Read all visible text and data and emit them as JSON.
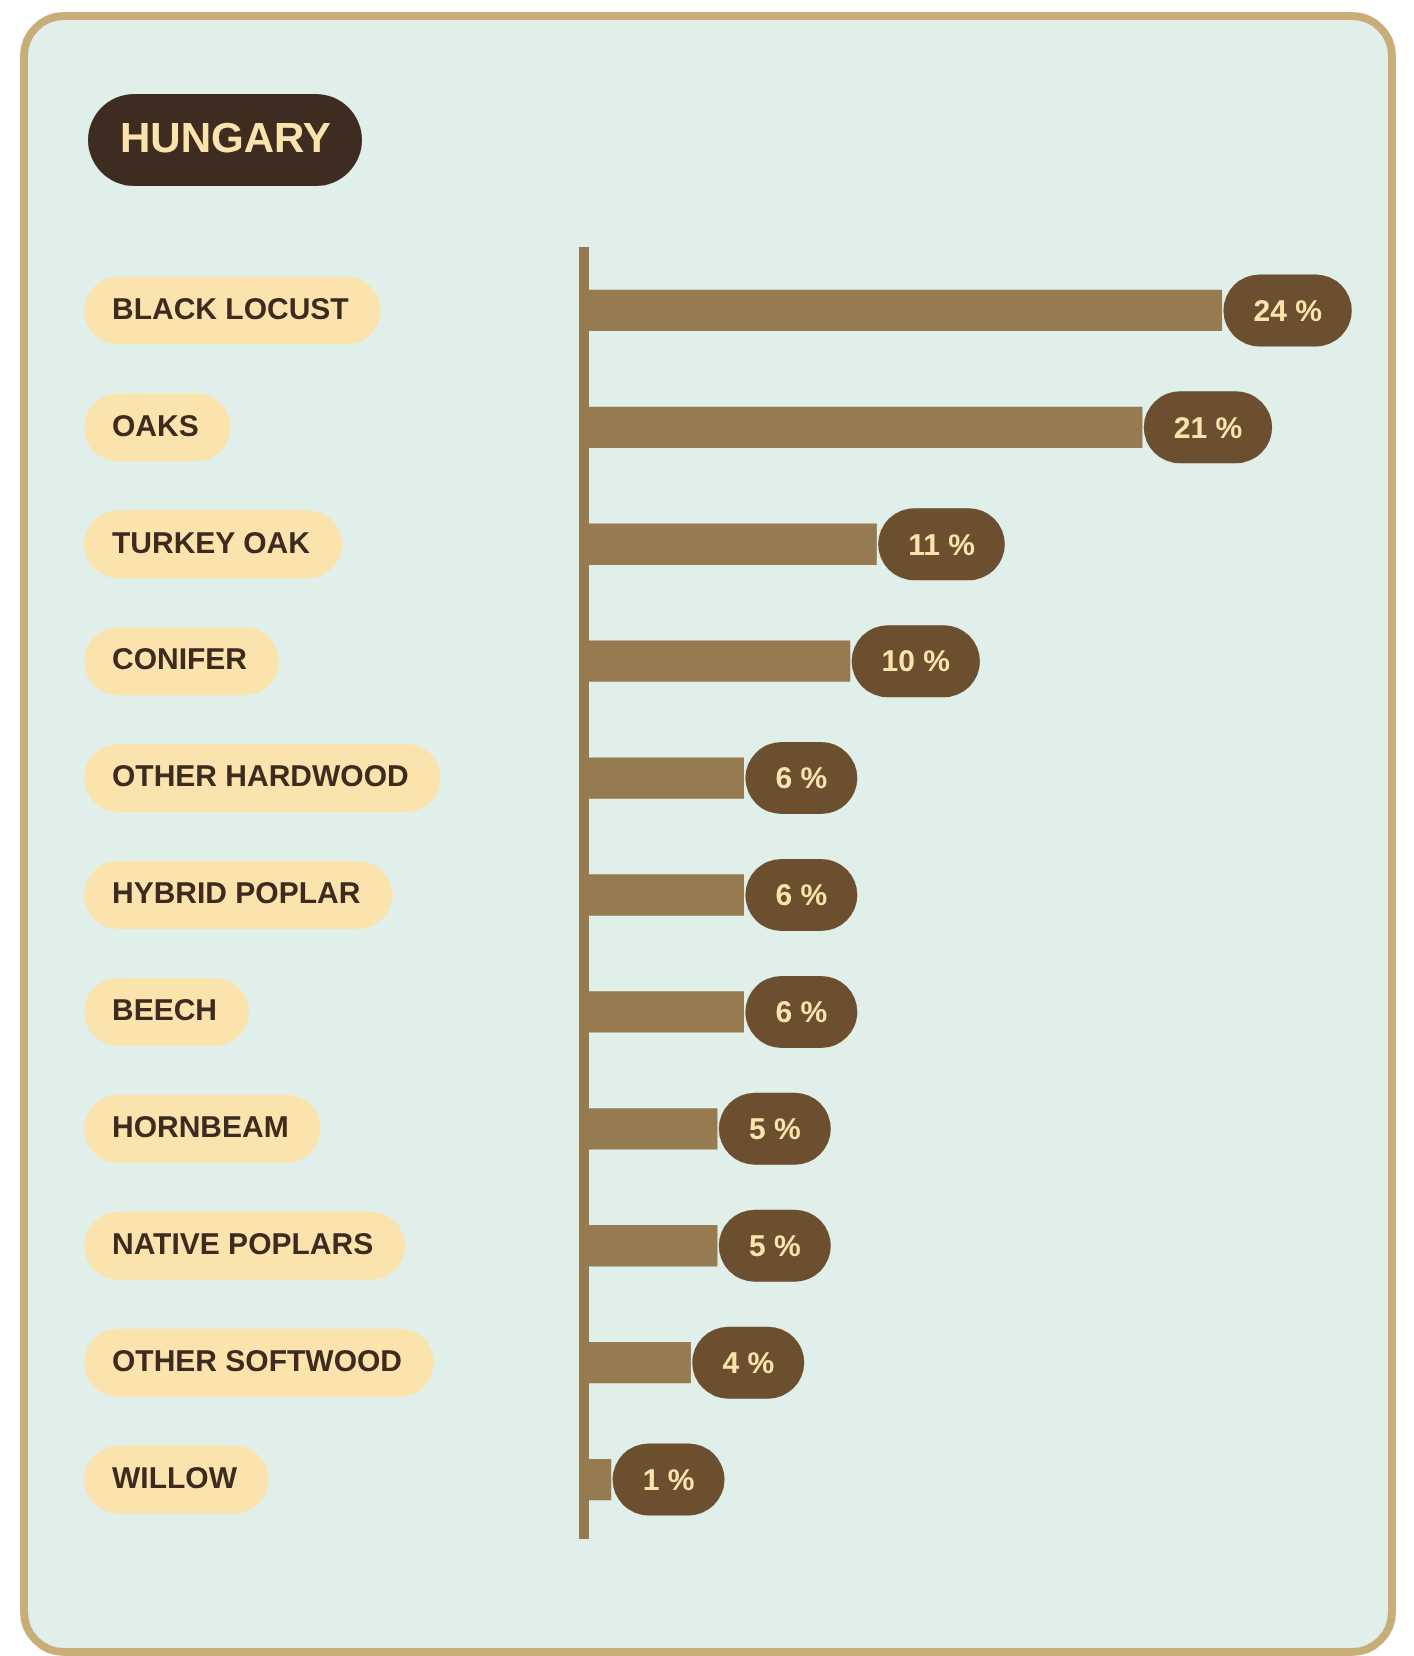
{
  "chart_data": {
    "type": "bar",
    "orientation": "horizontal",
    "title": "HUNGARY",
    "categories": [
      "BLACK LOCUST",
      "OAKS",
      "TURKEY OAK",
      "CONIFER",
      "OTHER HARDWOOD",
      "HYBRID POPLAR",
      "BEECH",
      "HORNBEAM",
      "NATIVE POPLARS",
      "OTHER SOFTWOOD",
      "WILLOW"
    ],
    "values": [
      24,
      21,
      11,
      10,
      6,
      6,
      6,
      5,
      5,
      4,
      1
    ],
    "value_labels": [
      "24 %",
      "21 %",
      "11 %",
      "10 %",
      "6 %",
      "6 %",
      "6 %",
      "5 %",
      "5 %",
      "4 %",
      "1 %"
    ],
    "color": "#967a50"
  }
}
